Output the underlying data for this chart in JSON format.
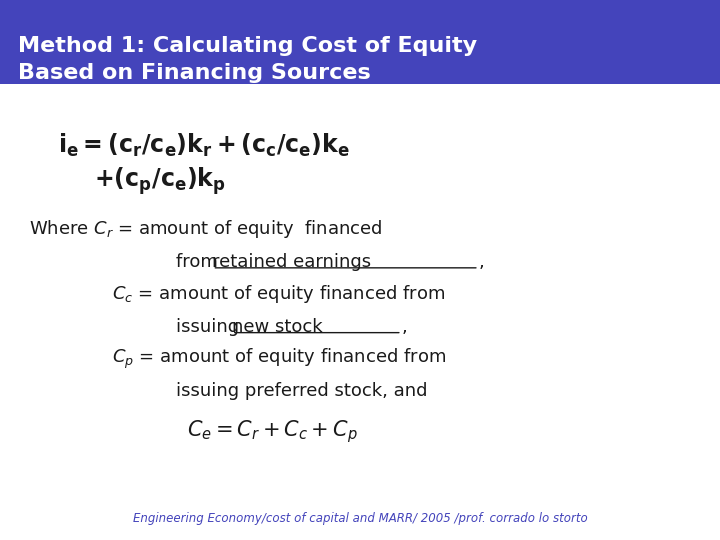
{
  "title_line1": "Method 1: Calculating Cost of Equity",
  "title_line2": "Based on Financing Sources",
  "title_bg_color": "#4444bb",
  "title_text_color": "#ffffff",
  "slide_bg_color": "#ffffff",
  "text_color": "#1a1a1a",
  "footer_text": "Engineering Economy/cost of capital and MARR/ 2005 /prof. corrado lo storto",
  "footer_color": "#4444bb"
}
